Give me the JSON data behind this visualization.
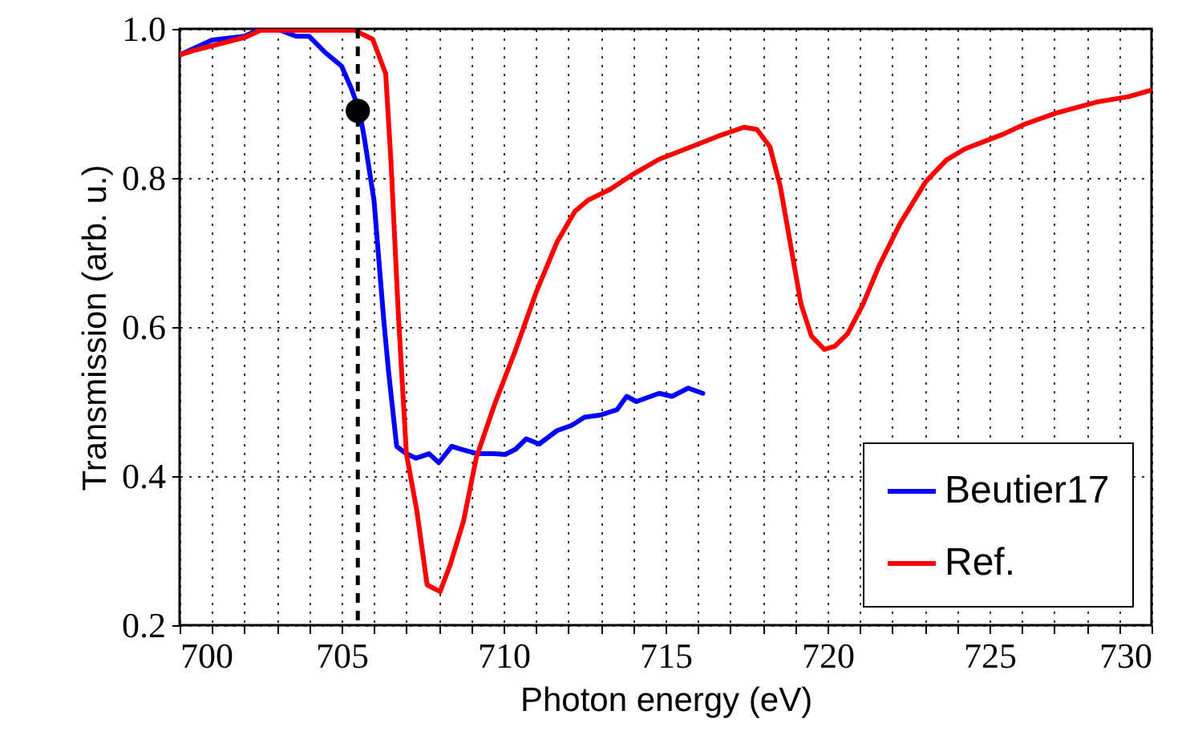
{
  "chart_data": {
    "type": "line",
    "xlabel": "Photon energy (eV)",
    "ylabel": "Transmission (arb. u.)",
    "xlim": [
      700,
      730
    ],
    "ylim": [
      0.2,
      1.0
    ],
    "xticks": [
      700,
      {
        "value": 701,
        "label": null
      },
      {
        "value": 702,
        "label": null
      },
      {
        "value": 703,
        "label": null
      },
      {
        "value": 704,
        "label": null
      },
      705,
      {
        "value": 706,
        "label": null
      },
      {
        "value": 707,
        "label": null
      },
      {
        "value": 708,
        "label": null
      },
      {
        "value": 709,
        "label": null
      },
      710,
      {
        "value": 711,
        "label": null
      },
      {
        "value": 712,
        "label": null
      },
      {
        "value": 713,
        "label": null
      },
      {
        "value": 714,
        "label": null
      },
      715,
      {
        "value": 716,
        "label": null
      },
      {
        "value": 717,
        "label": null
      },
      {
        "value": 718,
        "label": null
      },
      {
        "value": 719,
        "label": null
      },
      720,
      {
        "value": 721,
        "label": null
      },
      {
        "value": 722,
        "label": null
      },
      {
        "value": 723,
        "label": null
      },
      {
        "value": 724,
        "label": null
      },
      725,
      {
        "value": 726,
        "label": null
      },
      {
        "value": 727,
        "label": null
      },
      {
        "value": 728,
        "label": null
      },
      {
        "value": 729,
        "label": null
      },
      730
    ],
    "yticks": [
      0.2,
      0.4,
      0.6,
      0.8,
      {
        "value": 1.0,
        "label": "1.0"
      }
    ],
    "grid": true,
    "legend": "bottom right",
    "series": [
      {
        "name": "Beutier17",
        "color": "#0000ff",
        "x": [
          700,
          700.5,
          701,
          702,
          702.5,
          703,
          703.3,
          703.6,
          704,
          704.5,
          705,
          705.3,
          705.55,
          705.7,
          706.0,
          706.3,
          706.45,
          706.7,
          707.0,
          707.3,
          707.7,
          708.0,
          708.4,
          708.7,
          709.2,
          709.7,
          710.05,
          710.37,
          710.7,
          711.1,
          711.65,
          712.1,
          712.5,
          713,
          713.5,
          713.8,
          714.1,
          714.8,
          715.2,
          715.7,
          716.15
        ],
        "values": [
          0.965,
          0.975,
          0.985,
          0.99,
          1.0,
          1.0,
          0.995,
          0.99,
          0.99,
          0.968,
          0.95,
          0.92,
          0.89,
          0.854,
          0.77,
          0.61,
          0.54,
          0.44,
          0.43,
          0.424,
          0.43,
          0.418,
          0.44,
          0.436,
          0.43,
          0.43,
          0.429,
          0.436,
          0.45,
          0.443,
          0.461,
          0.468,
          0.479,
          0.482,
          0.489,
          0.507,
          0.5,
          0.511,
          0.507,
          0.518,
          0.511
        ]
      },
      {
        "name": "Ref.",
        "color": "#ff0000",
        "x": [
          700,
          700.44,
          702.04,
          702.5,
          703.5,
          704.5,
          705.4,
          705.96,
          706.36,
          706.52,
          706.76,
          707.0,
          707.32,
          707.64,
          708.04,
          708.36,
          708.76,
          709.16,
          709.72,
          710.04,
          710.36,
          711.0,
          711.65,
          712.2,
          712.6,
          713.3,
          714,
          714.8,
          715.8,
          716.62,
          717.42,
          717.82,
          718.22,
          718.54,
          718.86,
          719.18,
          719.5,
          719.9,
          720.22,
          720.62,
          721.1,
          721.58,
          722.23,
          723.03,
          723.67,
          724.24,
          725.44,
          726.08,
          727.05,
          728.33,
          729.29,
          730
        ],
        "values": [
          0.965,
          0.971,
          0.989,
          0.998,
          0.998,
          0.998,
          0.998,
          0.986,
          0.94,
          0.825,
          0.61,
          0.43,
          0.354,
          0.254,
          0.245,
          0.282,
          0.339,
          0.425,
          0.496,
          0.532,
          0.568,
          0.646,
          0.714,
          0.755,
          0.77,
          0.785,
          0.805,
          0.825,
          0.842,
          0.856,
          0.868,
          0.865,
          0.842,
          0.789,
          0.71,
          0.631,
          0.588,
          0.57,
          0.574,
          0.591,
          0.631,
          0.681,
          0.738,
          0.795,
          0.824,
          0.839,
          0.859,
          0.872,
          0.887,
          0.902,
          0.909,
          0.918
        ]
      },
      {
        "type": "scatter",
        "color": "#000000",
        "x": [
          705.5
        ],
        "values": [
          0.89
        ]
      }
    ],
    "ref_lines": [
      {
        "axis": "x",
        "value": 705.5,
        "color": "#000000",
        "line_style": "dashed"
      }
    ]
  }
}
